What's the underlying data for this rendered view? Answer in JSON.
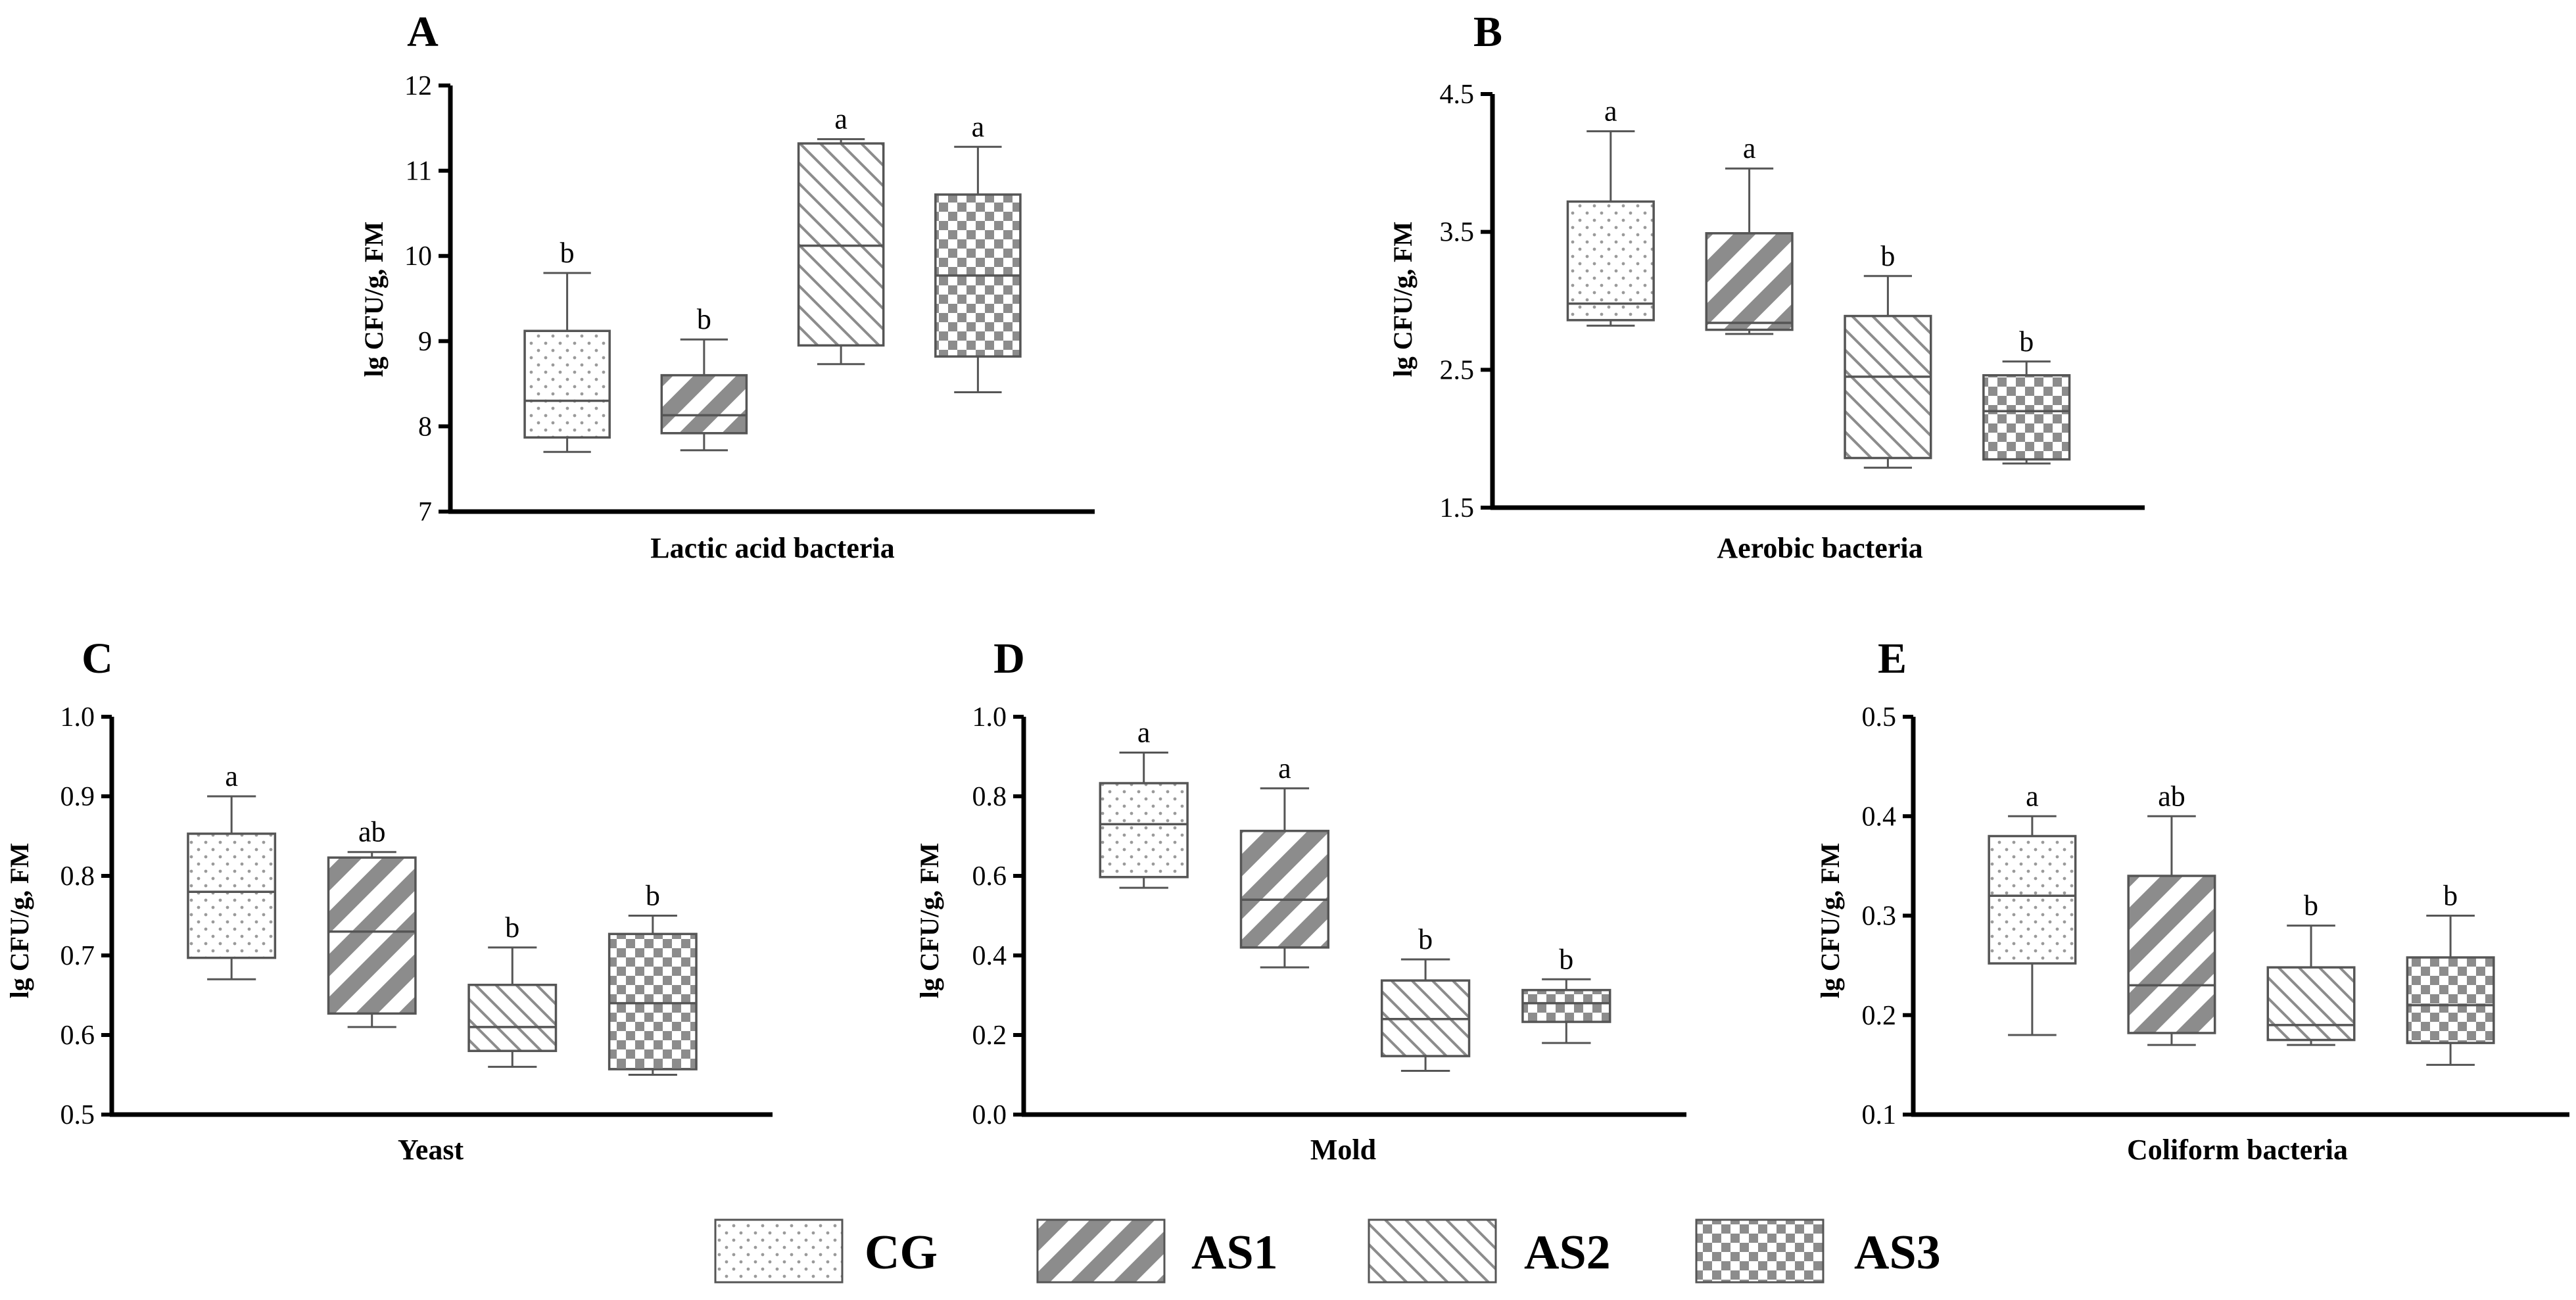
{
  "colors": {
    "axis": "#000000",
    "box_stroke": "#555555",
    "pattern": "#8c8c8c",
    "background": "#ffffff"
  },
  "legend": {
    "items": [
      {
        "label": "CG",
        "pattern": "dots"
      },
      {
        "label": "AS1",
        "pattern": "wide-diagonal"
      },
      {
        "label": "AS2",
        "pattern": "fine-backslash"
      },
      {
        "label": "AS3",
        "pattern": "checker"
      }
    ]
  },
  "chart_data": [
    {
      "panel": "A",
      "type": "boxplot",
      "xlabel": "Lactic acid bacteria",
      "ylabel": "lg CFU/g, FM",
      "ylim": [
        7,
        12
      ],
      "yticks": [
        "7",
        "8",
        "9",
        "10",
        "11",
        "12"
      ],
      "series": [
        {
          "name": "CG",
          "min": 7.7,
          "q1": 7.87,
          "median": 8.3,
          "q3": 9.12,
          "max": 9.8,
          "sig": "b"
        },
        {
          "name": "AS1",
          "min": 7.72,
          "q1": 7.92,
          "median": 8.13,
          "q3": 8.6,
          "max": 9.02,
          "sig": "b"
        },
        {
          "name": "AS2",
          "min": 8.73,
          "q1": 8.95,
          "median": 10.12,
          "q3": 11.32,
          "max": 11.37,
          "sig": "a"
        },
        {
          "name": "AS3",
          "min": 8.4,
          "q1": 8.82,
          "median": 9.77,
          "q3": 10.72,
          "max": 11.28,
          "sig": "a"
        }
      ]
    },
    {
      "panel": "B",
      "type": "boxplot",
      "xlabel": "Aerobic bacteria",
      "ylabel": "lg CFU/g, FM",
      "ylim": [
        1.5,
        4.5
      ],
      "yticks": [
        "1.5",
        "2.5",
        "3.5",
        "4.5"
      ],
      "series": [
        {
          "name": "CG",
          "min": 2.82,
          "q1": 2.86,
          "median": 2.98,
          "q3": 3.72,
          "max": 4.23,
          "sig": "a"
        },
        {
          "name": "AS1",
          "min": 2.76,
          "q1": 2.79,
          "median": 2.84,
          "q3": 3.49,
          "max": 3.96,
          "sig": "a"
        },
        {
          "name": "AS2",
          "min": 1.79,
          "q1": 1.86,
          "median": 2.45,
          "q3": 2.89,
          "max": 3.18,
          "sig": "b"
        },
        {
          "name": "AS3",
          "min": 1.82,
          "q1": 1.85,
          "median": 2.2,
          "q3": 2.46,
          "max": 2.56,
          "sig": "b"
        }
      ]
    },
    {
      "panel": "C",
      "type": "boxplot",
      "xlabel": "Yeast",
      "ylabel": "lg CFU/g, FM",
      "ylim": [
        0.5,
        1.0
      ],
      "yticks": [
        "0.5",
        "0.6",
        "0.7",
        "0.8",
        "0.9",
        "1.0"
      ],
      "series": [
        {
          "name": "CG",
          "min": 0.67,
          "q1": 0.697,
          "median": 0.78,
          "q3": 0.853,
          "max": 0.9,
          "sig": "a"
        },
        {
          "name": "AS1",
          "min": 0.61,
          "q1": 0.627,
          "median": 0.73,
          "q3": 0.823,
          "max": 0.83,
          "sig": "ab"
        },
        {
          "name": "AS2",
          "min": 0.56,
          "q1": 0.58,
          "median": 0.61,
          "q3": 0.663,
          "max": 0.71,
          "sig": "b"
        },
        {
          "name": "AS3",
          "min": 0.55,
          "q1": 0.557,
          "median": 0.64,
          "q3": 0.727,
          "max": 0.75,
          "sig": "b"
        }
      ]
    },
    {
      "panel": "D",
      "type": "boxplot",
      "xlabel": "Mold",
      "ylabel": "lg CFU/g, FM",
      "ylim": [
        0.0,
        1.0
      ],
      "yticks": [
        "0.0",
        "0.2",
        "0.4",
        "0.6",
        "0.8",
        "1.0"
      ],
      "series": [
        {
          "name": "CG",
          "min": 0.57,
          "q1": 0.597,
          "median": 0.73,
          "q3": 0.833,
          "max": 0.91,
          "sig": "a"
        },
        {
          "name": "AS1",
          "min": 0.37,
          "q1": 0.42,
          "median": 0.54,
          "q3": 0.713,
          "max": 0.82,
          "sig": "a"
        },
        {
          "name": "AS2",
          "min": 0.11,
          "q1": 0.147,
          "median": 0.24,
          "q3": 0.337,
          "max": 0.39,
          "sig": "b"
        },
        {
          "name": "AS3",
          "min": 0.18,
          "q1": 0.233,
          "median": 0.28,
          "q3": 0.313,
          "max": 0.34,
          "sig": "b"
        }
      ]
    },
    {
      "panel": "E",
      "type": "boxplot",
      "xlabel": "Coliform bacteria",
      "ylabel": "lg CFU/g, FM",
      "ylim": [
        0.1,
        0.5
      ],
      "yticks": [
        "0.1",
        "0.2",
        "0.3",
        "0.4",
        "0.5"
      ],
      "series": [
        {
          "name": "CG",
          "min": 0.18,
          "q1": 0.252,
          "median": 0.32,
          "q3": 0.38,
          "max": 0.4,
          "sig": "a"
        },
        {
          "name": "AS1",
          "min": 0.17,
          "q1": 0.182,
          "median": 0.23,
          "q3": 0.34,
          "max": 0.4,
          "sig": "ab"
        },
        {
          "name": "AS2",
          "min": 0.17,
          "q1": 0.175,
          "median": 0.19,
          "q3": 0.248,
          "max": 0.29,
          "sig": "b"
        },
        {
          "name": "AS3",
          "min": 0.15,
          "q1": 0.172,
          "median": 0.21,
          "q3": 0.258,
          "max": 0.3,
          "sig": "b"
        }
      ]
    }
  ]
}
